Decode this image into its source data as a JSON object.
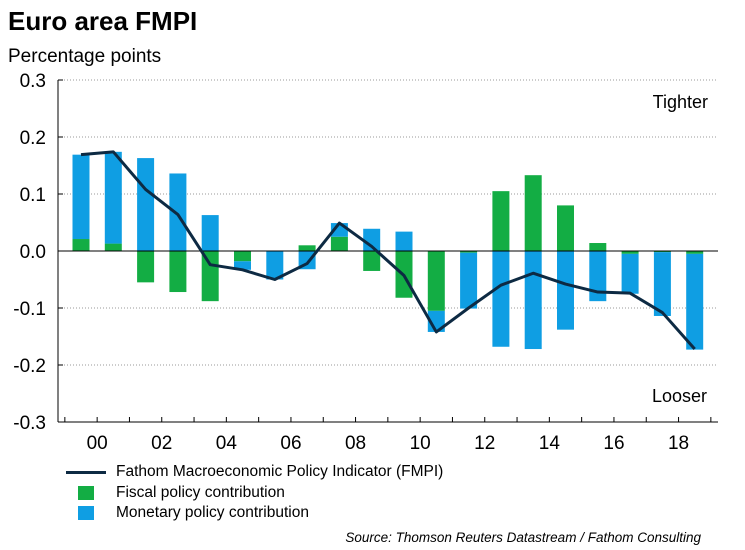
{
  "chart_data": {
    "type": "bar+line",
    "title": "Euro area FMPI",
    "ylabel": "Percentage points",
    "ylim": [
      -0.3,
      0.3
    ],
    "yticks": [
      0.3,
      0.2,
      0.1,
      0.0,
      -0.1,
      -0.2,
      -0.3
    ],
    "ytick_labels": [
      "0.3",
      "0.2",
      "0.1",
      "0.0",
      "-0.1",
      "-0.2",
      "-0.3"
    ],
    "categories": [
      "1999",
      "2000",
      "2001",
      "2002",
      "2003",
      "2004",
      "2005",
      "2006",
      "2007",
      "2008",
      "2009",
      "2010",
      "2011",
      "2012",
      "2013",
      "2014",
      "2015",
      "2016",
      "2017",
      "2018"
    ],
    "xtick_labels": [
      "00",
      "02",
      "04",
      "06",
      "08",
      "10",
      "12",
      "14",
      "16",
      "18"
    ],
    "annotations": {
      "top": "Tighter",
      "bottom": "Looser"
    },
    "grid": true,
    "series": [
      {
        "name": "Fathom Macroeconomic Policy Indicator (FMPI)",
        "kind": "line",
        "color": "#0d2a43",
        "values": [
          0.169,
          0.174,
          0.108,
          0.064,
          -0.024,
          -0.033,
          -0.05,
          -0.022,
          0.049,
          0.008,
          -0.043,
          -0.142,
          -0.1,
          -0.06,
          -0.039,
          -0.058,
          -0.072,
          -0.074,
          -0.108,
          -0.172
        ]
      },
      {
        "name": "Fiscal policy contribution",
        "kind": "bar",
        "color": "#13ad44",
        "values": [
          0.021,
          0.013,
          -0.055,
          -0.072,
          -0.088,
          -0.018,
          0.0,
          0.01,
          0.025,
          -0.035,
          -0.082,
          -0.105,
          -0.003,
          0.105,
          0.133,
          0.08,
          0.014,
          -0.005,
          -0.002,
          -0.005
        ]
      },
      {
        "name": "Monetary policy contribution",
        "kind": "bar",
        "color": "#0f9ee3",
        "values": [
          0.148,
          0.161,
          0.163,
          0.136,
          0.063,
          -0.015,
          -0.05,
          -0.032,
          0.024,
          0.039,
          0.034,
          -0.037,
          -0.098,
          -0.168,
          -0.172,
          -0.138,
          -0.088,
          -0.07,
          -0.112,
          -0.168
        ]
      }
    ],
    "source": "Source: Thomson Reuters Datastream / Fathom Consulting"
  }
}
